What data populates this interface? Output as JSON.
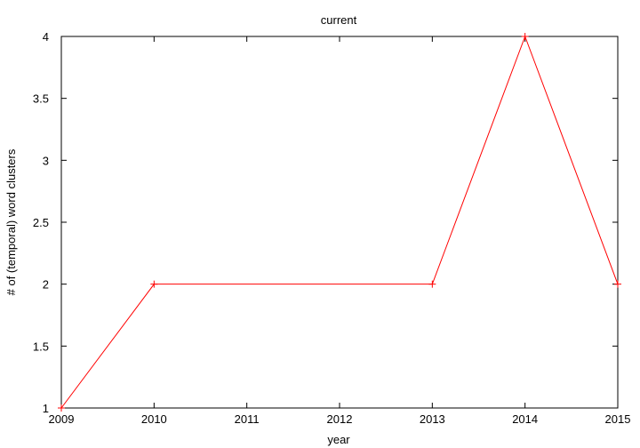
{
  "chart_data": {
    "type": "line",
    "title": "current",
    "xlabel": "year",
    "ylabel": "# of (temporal) word clusters",
    "xlim": [
      2009,
      2015
    ],
    "ylim": [
      1,
      4
    ],
    "x_ticks": [
      2009,
      2010,
      2011,
      2012,
      2013,
      2014,
      2015
    ],
    "y_ticks": [
      1,
      1.5,
      2,
      2.5,
      3,
      3.5,
      4
    ],
    "x_tick_labels": [
      "2009",
      "2010",
      "2011",
      "2012",
      "2013",
      "2014",
      "2015"
    ],
    "y_tick_labels": [
      "1",
      "1.5",
      "2",
      "2.5",
      "3",
      "3.5",
      "4"
    ],
    "grid": false,
    "legend": "none",
    "series": [
      {
        "color": "#ff0000",
        "marker": "plus",
        "x": [
          2009,
          2010,
          2013,
          2014,
          2015
        ],
        "y": [
          1,
          2,
          2,
          4,
          2
        ]
      }
    ]
  }
}
